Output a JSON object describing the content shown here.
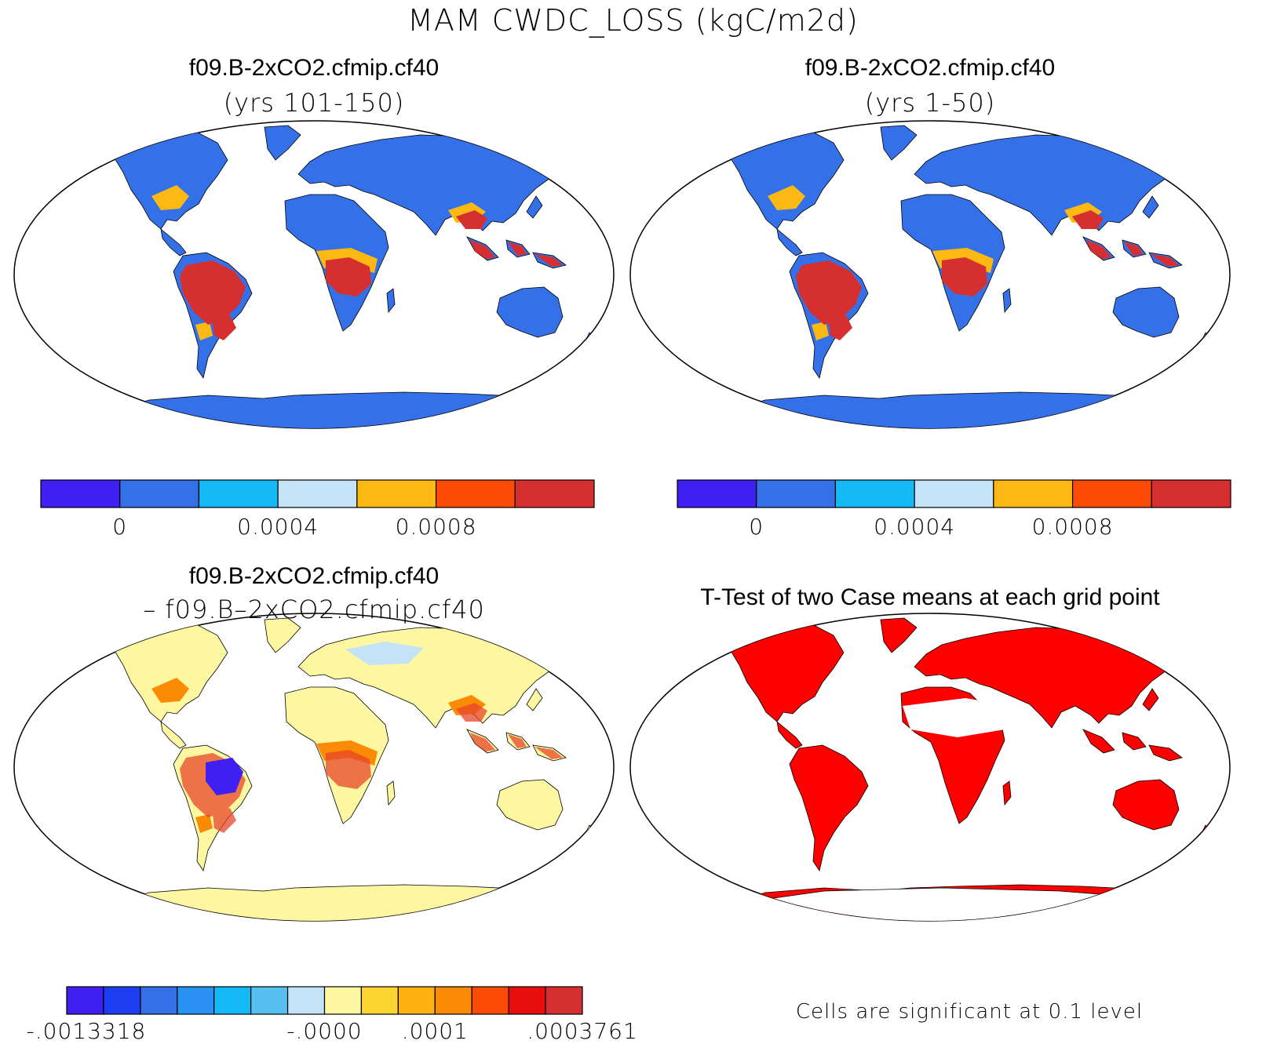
{
  "figure": {
    "title": "MAM CWDC_LOSS (kgC/m2d)"
  },
  "panels": [
    {
      "id": "panel-1",
      "title_line1": "f09.B-2xCO2.cfmip.cf40",
      "title_line2": "(yrs 101-150)",
      "colorbar": {
        "colors": [
          "#3f1ff2",
          "#3470e8",
          "#14baf6",
          "#c4e3f7",
          "#fdb912",
          "#fc4a07",
          "#d5302f"
        ],
        "tick_labels": [
          "0",
          "0.0004",
          "0.0008"
        ]
      }
    },
    {
      "id": "panel-2",
      "title_line1": "f09.B-2xCO2.cfmip.cf40",
      "title_line2": "(yrs 1-50)",
      "colorbar": {
        "colors": [
          "#3f1ff2",
          "#3470e8",
          "#14baf6",
          "#c4e3f7",
          "#fdb912",
          "#fc4a07",
          "#d5302f"
        ],
        "tick_labels": [
          "0",
          "0.0004",
          "0.0008"
        ]
      }
    },
    {
      "id": "panel-3",
      "title_line1": "f09.B-2xCO2.cfmip.cf40",
      "title_line2": "– f09.B–2xCO2.cfmip.cf40",
      "colorbar": {
        "colors": [
          "#3f1ff2",
          "#1d3df0",
          "#3470e8",
          "#2891f2",
          "#14baf6",
          "#58c0f0",
          "#c4e3f7",
          "#fcf7a0",
          "#fdd530",
          "#fdb010",
          "#fb8a04",
          "#fc4a07",
          "#e80e0e",
          "#d5302f"
        ],
        "tick_labels": [
          "-.0013318",
          "-.0000",
          ".0001",
          ".0003761"
        ]
      }
    },
    {
      "id": "panel-4",
      "title_line1": "T-Test of two Case means at each grid point",
      "footer": "Cells are significant at 0.1 level",
      "significant_color": "#ff0000"
    }
  ]
}
